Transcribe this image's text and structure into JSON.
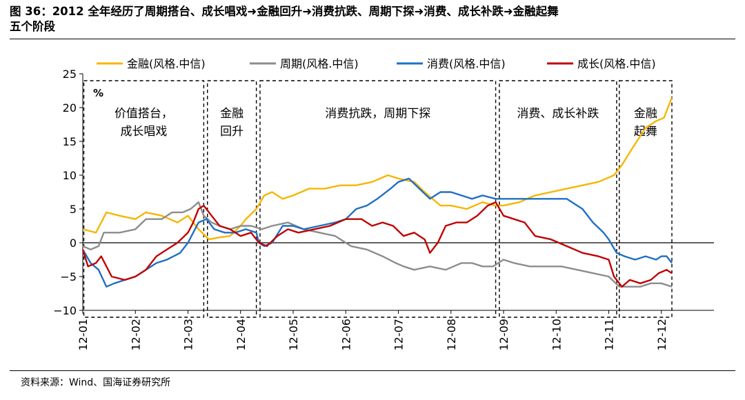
{
  "figure": {
    "title": "图 36：2012 全年经历了周期搭台、成长唱戏➜金融回升➜消费抗跌、周期下探➜消费、成长补跌➜金融起舞\n五个阶段",
    "source": "资料来源：Wind、国海证券研究所"
  },
  "chart_data": {
    "type": "line",
    "unit": "%",
    "ylim": [
      -10,
      25
    ],
    "yticks": [
      -10,
      -5,
      0,
      5,
      10,
      15,
      20,
      25
    ],
    "ytick_labels": [
      "−10",
      "−5",
      "0",
      "5",
      "10",
      "15",
      "20",
      "25"
    ],
    "xlim": [
      0,
      12
    ],
    "xticks": [
      0,
      1,
      2,
      3,
      4,
      5,
      6,
      7,
      8,
      9,
      10,
      11
    ],
    "xtick_labels": [
      "12-01",
      "12-02",
      "12-03",
      "12-04",
      "12-05",
      "12-06",
      "12-07",
      "12-08",
      "12-09",
      "12-10",
      "12-11",
      "12-12"
    ],
    "grid": false,
    "legend": "top",
    "stages": [
      {
        "start": 0.02,
        "end": 2.3,
        "label": "价值搭台，\n成长唱戏"
      },
      {
        "start": 2.37,
        "end": 3.3,
        "label": "金融\n回升"
      },
      {
        "start": 3.37,
        "end": 7.85,
        "label": "消费抗跌，周期下探"
      },
      {
        "start": 7.92,
        "end": 10.15,
        "label": "消费、成长补跌"
      },
      {
        "start": 10.2,
        "end": 11.2,
        "label": "金融\n起舞"
      }
    ],
    "series": [
      {
        "name": "金融(风格.中信)",
        "color": "#F7B500",
        "points": [
          [
            0,
            2
          ],
          [
            0.25,
            1.5
          ],
          [
            0.45,
            4.5
          ],
          [
            0.7,
            4
          ],
          [
            1.0,
            3.5
          ],
          [
            1.2,
            4.5
          ],
          [
            1.5,
            4
          ],
          [
            1.8,
            3
          ],
          [
            2.0,
            4
          ],
          [
            2.2,
            2
          ],
          [
            2.4,
            0.5
          ],
          [
            2.6,
            0.8
          ],
          [
            2.8,
            1
          ],
          [
            3.0,
            2.5
          ],
          [
            3.1,
            3.5
          ],
          [
            3.3,
            5
          ],
          [
            3.45,
            7
          ],
          [
            3.6,
            7.5
          ],
          [
            3.8,
            6.5
          ],
          [
            4.0,
            7
          ],
          [
            4.3,
            8
          ],
          [
            4.6,
            8
          ],
          [
            4.9,
            8.5
          ],
          [
            5.2,
            8.5
          ],
          [
            5.5,
            9
          ],
          [
            5.8,
            10
          ],
          [
            6.0,
            9.5
          ],
          [
            6.3,
            9
          ],
          [
            6.5,
            7.5
          ],
          [
            6.8,
            5.5
          ],
          [
            7.0,
            5.5
          ],
          [
            7.3,
            5
          ],
          [
            7.6,
            6
          ],
          [
            7.85,
            5.5
          ],
          [
            8.0,
            5.5
          ],
          [
            8.3,
            6
          ],
          [
            8.6,
            7
          ],
          [
            8.9,
            7.5
          ],
          [
            9.2,
            8
          ],
          [
            9.5,
            8.5
          ],
          [
            9.8,
            9
          ],
          [
            10.1,
            10
          ],
          [
            10.25,
            11.5
          ],
          [
            10.45,
            14
          ],
          [
            10.7,
            17
          ],
          [
            10.9,
            18
          ],
          [
            11.05,
            18.5
          ],
          [
            11.2,
            21.5
          ]
        ]
      },
      {
        "name": "周期(风格.中信)",
        "color": "#8C8C8C",
        "points": [
          [
            0,
            -0.5
          ],
          [
            0.15,
            -1
          ],
          [
            0.3,
            -0.5
          ],
          [
            0.4,
            1.5
          ],
          [
            0.7,
            1.5
          ],
          [
            1.0,
            2
          ],
          [
            1.2,
            3.5
          ],
          [
            1.5,
            3.5
          ],
          [
            1.7,
            4.5
          ],
          [
            1.9,
            4.5
          ],
          [
            2.05,
            5
          ],
          [
            2.2,
            6
          ],
          [
            2.3,
            4
          ],
          [
            2.45,
            3
          ],
          [
            2.6,
            2.5
          ],
          [
            2.8,
            2
          ],
          [
            3.0,
            2.5
          ],
          [
            3.2,
            2.5
          ],
          [
            3.4,
            2
          ],
          [
            3.6,
            2.5
          ],
          [
            3.9,
            3
          ],
          [
            4.2,
            2
          ],
          [
            4.5,
            1.5
          ],
          [
            4.8,
            1
          ],
          [
            5.1,
            -0.5
          ],
          [
            5.4,
            -1
          ],
          [
            5.7,
            -2
          ],
          [
            5.95,
            -3
          ],
          [
            6.1,
            -3.5
          ],
          [
            6.3,
            -4
          ],
          [
            6.6,
            -3.5
          ],
          [
            6.9,
            -4
          ],
          [
            7.2,
            -3
          ],
          [
            7.4,
            -3
          ],
          [
            7.6,
            -3.5
          ],
          [
            7.8,
            -3.5
          ],
          [
            8.0,
            -2.5
          ],
          [
            8.2,
            -3
          ],
          [
            8.5,
            -3.5
          ],
          [
            8.8,
            -3.5
          ],
          [
            9.1,
            -3.5
          ],
          [
            9.4,
            -4
          ],
          [
            9.7,
            -4.5
          ],
          [
            10.0,
            -5
          ],
          [
            10.2,
            -6.5
          ],
          [
            10.4,
            -6.5
          ],
          [
            10.6,
            -6.5
          ],
          [
            10.8,
            -6
          ],
          [
            11.0,
            -6
          ],
          [
            11.2,
            -6.5
          ]
        ]
      },
      {
        "name": "消费(风格.中信)",
        "color": "#1E6FC4",
        "points": [
          [
            0,
            -1
          ],
          [
            0.15,
            -3
          ],
          [
            0.3,
            -4
          ],
          [
            0.45,
            -6.5
          ],
          [
            0.6,
            -6
          ],
          [
            0.8,
            -5.5
          ],
          [
            1.0,
            -5
          ],
          [
            1.2,
            -4
          ],
          [
            1.4,
            -3
          ],
          [
            1.6,
            -2.5
          ],
          [
            1.85,
            -1.5
          ],
          [
            2.0,
            0
          ],
          [
            2.1,
            1.5
          ],
          [
            2.2,
            3
          ],
          [
            2.35,
            3.5
          ],
          [
            2.5,
            2
          ],
          [
            2.7,
            1.5
          ],
          [
            2.9,
            1.5
          ],
          [
            3.1,
            2
          ],
          [
            3.3,
            1.5
          ],
          [
            3.35,
            0
          ],
          [
            3.45,
            -0.5
          ],
          [
            3.6,
            0
          ],
          [
            3.8,
            2.5
          ],
          [
            4.0,
            2.5
          ],
          [
            4.2,
            2
          ],
          [
            4.5,
            2.5
          ],
          [
            4.8,
            3
          ],
          [
            5.0,
            3.5
          ],
          [
            5.2,
            5
          ],
          [
            5.4,
            5.5
          ],
          [
            5.6,
            6.5
          ],
          [
            5.85,
            8
          ],
          [
            6.0,
            9
          ],
          [
            6.2,
            9.5
          ],
          [
            6.4,
            8
          ],
          [
            6.6,
            6.5
          ],
          [
            6.8,
            7.5
          ],
          [
            7.0,
            7.5
          ],
          [
            7.2,
            7
          ],
          [
            7.4,
            6.5
          ],
          [
            7.6,
            7
          ],
          [
            7.85,
            6.5
          ],
          [
            8.0,
            6.5
          ],
          [
            8.3,
            6.5
          ],
          [
            8.6,
            6.5
          ],
          [
            8.9,
            6.5
          ],
          [
            9.2,
            6.5
          ],
          [
            9.5,
            5
          ],
          [
            9.7,
            3
          ],
          [
            9.9,
            1.5
          ],
          [
            10.0,
            0.5
          ],
          [
            10.15,
            -1.5
          ],
          [
            10.3,
            -2
          ],
          [
            10.5,
            -2.5
          ],
          [
            10.7,
            -2
          ],
          [
            10.9,
            -2.5
          ],
          [
            11.0,
            -2
          ],
          [
            11.1,
            -2
          ],
          [
            11.2,
            -3
          ]
        ]
      },
      {
        "name": "成长(风格.中信)",
        "color": "#C00000",
        "points": [
          [
            0,
            -1
          ],
          [
            0.1,
            -3.5
          ],
          [
            0.25,
            -3
          ],
          [
            0.35,
            -2
          ],
          [
            0.55,
            -5
          ],
          [
            0.8,
            -5.5
          ],
          [
            1.0,
            -5
          ],
          [
            1.2,
            -4
          ],
          [
            1.4,
            -2
          ],
          [
            1.6,
            -1
          ],
          [
            1.8,
            0
          ],
          [
            2.0,
            1.5
          ],
          [
            2.1,
            3
          ],
          [
            2.2,
            5
          ],
          [
            2.3,
            5.5
          ],
          [
            2.45,
            4
          ],
          [
            2.6,
            2.5
          ],
          [
            2.8,
            2
          ],
          [
            3.0,
            1
          ],
          [
            3.2,
            1.5
          ],
          [
            3.35,
            0
          ],
          [
            3.5,
            -0.5
          ],
          [
            3.7,
            1
          ],
          [
            3.9,
            2
          ],
          [
            4.1,
            1.5
          ],
          [
            4.4,
            2
          ],
          [
            4.7,
            2.5
          ],
          [
            5.0,
            3.5
          ],
          [
            5.3,
            3.5
          ],
          [
            5.5,
            2.5
          ],
          [
            5.7,
            3
          ],
          [
            5.9,
            2.5
          ],
          [
            6.1,
            1
          ],
          [
            6.3,
            1.5
          ],
          [
            6.5,
            0.5
          ],
          [
            6.6,
            -1.5
          ],
          [
            6.75,
            0
          ],
          [
            6.9,
            2.5
          ],
          [
            7.1,
            3
          ],
          [
            7.3,
            3
          ],
          [
            7.5,
            4
          ],
          [
            7.7,
            5.5
          ],
          [
            7.85,
            6
          ],
          [
            8.0,
            4
          ],
          [
            8.2,
            3.5
          ],
          [
            8.4,
            3
          ],
          [
            8.6,
            1
          ],
          [
            8.9,
            0.5
          ],
          [
            9.2,
            -0.5
          ],
          [
            9.5,
            -1.5
          ],
          [
            9.8,
            -2
          ],
          [
            10.0,
            -2.5
          ],
          [
            10.1,
            -5
          ],
          [
            10.25,
            -6.5
          ],
          [
            10.4,
            -5.5
          ],
          [
            10.6,
            -6
          ],
          [
            10.8,
            -5.5
          ],
          [
            10.95,
            -4.5
          ],
          [
            11.1,
            -4
          ],
          [
            11.2,
            -4.5
          ]
        ]
      }
    ]
  }
}
